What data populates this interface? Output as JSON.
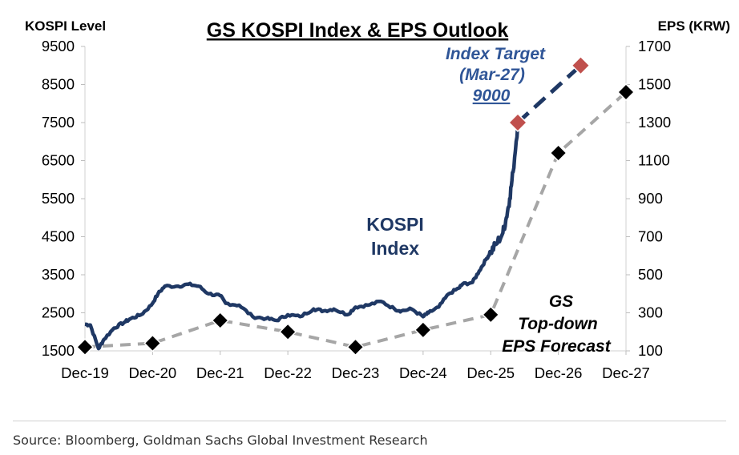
{
  "chart_data": {
    "type": "line",
    "title": "GS KOSPI Index & EPS Outlook",
    "y_left_label": "KOSPI Level",
    "y_right_label": "EPS (KRW)",
    "y_left_lim": [
      1500,
      9500
    ],
    "y_left_ticks": [
      "1500",
      "2500",
      "3500",
      "4500",
      "5500",
      "6500",
      "7500",
      "8500",
      "9500"
    ],
    "y_right_lim": [
      100,
      1700
    ],
    "y_right_ticks": [
      "100",
      "300",
      "500",
      "700",
      "900",
      "1100",
      "1300",
      "1500",
      "1700"
    ],
    "x_ticks": [
      "Dec-19",
      "Dec-20",
      "Dec-21",
      "Dec-22",
      "Dec-23",
      "Dec-24",
      "Dec-25",
      "Dec-26",
      "Dec-27"
    ],
    "grid": false,
    "series": [
      {
        "name": "KOSPI Index",
        "axis": "left",
        "color": "#1f3864",
        "x": [
          2019.92,
          2020.0,
          2020.12,
          2020.2,
          2020.35,
          2020.5,
          2020.6,
          2020.75,
          2020.9,
          2021.0,
          2021.1,
          2021.3,
          2021.45,
          2021.6,
          2021.75,
          2021.92,
          2022.0,
          2022.2,
          2022.4,
          2022.6,
          2022.75,
          2022.92,
          2023.1,
          2023.3,
          2023.45,
          2023.6,
          2023.8,
          2023.92,
          2024.1,
          2024.3,
          2024.5,
          2024.6,
          2024.75,
          2024.92,
          2025.0,
          2025.15,
          2025.3,
          2025.45,
          2025.5,
          2025.65,
          2025.75,
          2025.85,
          2025.92,
          2026.0,
          2026.1,
          2026.15,
          2026.2,
          2026.25,
          2026.32
        ],
        "y": [
          2200,
          2180,
          1560,
          1800,
          2100,
          2250,
          2350,
          2450,
          2700,
          3000,
          3200,
          3200,
          3250,
          3200,
          3000,
          2950,
          2750,
          2700,
          2400,
          2350,
          2300,
          2450,
          2400,
          2600,
          2550,
          2600,
          2450,
          2650,
          2700,
          2800,
          2600,
          2550,
          2600,
          2400,
          2500,
          2650,
          3000,
          3150,
          3250,
          3300,
          3600,
          3900,
          4100,
          4300,
          4600,
          5000,
          5500,
          6200,
          7450
        ]
      },
      {
        "name": "Index Target",
        "axis": "left",
        "color": "#1f3864",
        "style": "dashed",
        "x": [
          2026.32,
          2027.25
        ],
        "y": [
          7500,
          9000
        ],
        "markers": "red-diamond"
      },
      {
        "name": "GS Top-down EPS Forecast",
        "axis": "right",
        "color": "#a6a6a6",
        "style": "dashed",
        "markers": "black-diamond",
        "x": [
          2019.92,
          2020.92,
          2021.92,
          2022.92,
          2023.92,
          2024.92,
          2025.92,
          2026.92,
          2027.92
        ],
        "y": [
          120,
          140,
          260,
          200,
          120,
          210,
          290,
          1140,
          1460
        ]
      }
    ],
    "annotations": {
      "target_line1": "Index Target",
      "target_line2": "(Mar-27)",
      "target_line3": "9000",
      "kospi_line1": "KOSPI",
      "kospi_line2": "Index",
      "eps_line1": "GS",
      "eps_line2": "Top-down",
      "eps_line3": "EPS Forecast"
    },
    "colors": {
      "kospi": "#1f3864",
      "target_text": "#2f5597",
      "eps_line": "#a6a6a6",
      "target_marker": "#c0504d"
    }
  },
  "source": "Source: Bloomberg, Goldman Sachs Global Investment Research"
}
